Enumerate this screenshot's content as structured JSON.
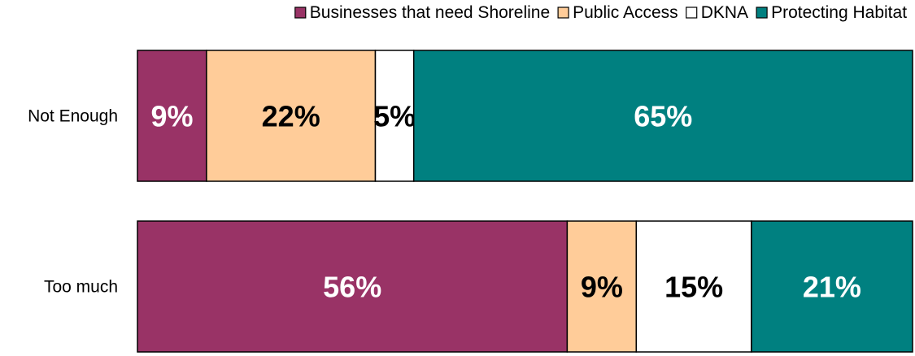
{
  "chart_data": {
    "type": "bar",
    "orientation": "horizontal",
    "stacked": true,
    "categories": [
      "Not Enough",
      "Too much"
    ],
    "series": [
      {
        "name": "Businesses that need Shoreline",
        "values": [
          9,
          56
        ],
        "color": "#993366",
        "label_color": "#ffffff"
      },
      {
        "name": "Public Access",
        "values": [
          22,
          9
        ],
        "color": "#ffcc99",
        "label_color": "#000000"
      },
      {
        "name": "DKNA",
        "values": [
          5,
          15
        ],
        "color": "#ffffff",
        "label_color": "#000000"
      },
      {
        "name": "Protecting Habitat",
        "values": [
          65,
          21
        ],
        "color": "#008080",
        "label_color": "#ffffff"
      }
    ],
    "value_suffix": "%",
    "legend_position": "top",
    "grid": false
  }
}
